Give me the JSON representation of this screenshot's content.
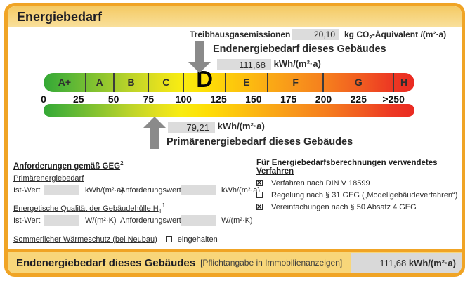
{
  "title": "Energiebedarf",
  "colors": {
    "frame": "#f0a425",
    "band": "#f8d67a",
    "valuebox": "#dcdcdc",
    "arrow": "#8a8a8a",
    "text-dark": "#1d1d24"
  },
  "emissions": {
    "label": "Treibhausgasemissionen",
    "value": "20,10",
    "unit_pre": "kg CO",
    "unit_sub": "2",
    "unit_post": "-Äquivalent /(m²·a)"
  },
  "endenergie": {
    "label": "Endenergiebedarf dieses Gebäudes",
    "value": "111,68",
    "unit": "kWh/(m²·a)"
  },
  "primaerenergie": {
    "value": "79,21",
    "unit": "kWh/(m²·a)",
    "label": "Primärenergiebedarf dieses Gebäudes"
  },
  "chart_data": {
    "type": "bar",
    "subtype": "energy-efficiency-class-scale",
    "title": "Energiebedarf",
    "unit": "kWh/(m²·a)",
    "axis_min": 0,
    "axis_max_label": ">250",
    "bar_value_span": 265,
    "tick_labels": [
      "0",
      "25",
      "50",
      "75",
      "100",
      "125",
      "150",
      "175",
      "200",
      "225",
      ">250"
    ],
    "tick_label_values": [
      0,
      25,
      50,
      75,
      100,
      125,
      150,
      175,
      200,
      225,
      250
    ],
    "class_boundaries": [
      30,
      50,
      75,
      100,
      130,
      160,
      200,
      250
    ],
    "classes": [
      {
        "label": "A+",
        "center": 15
      },
      {
        "label": "A",
        "center": 40
      },
      {
        "label": "B",
        "center": 62.5
      },
      {
        "label": "C",
        "center": 87.5
      },
      {
        "label": "D",
        "center": 115
      },
      {
        "label": "E",
        "center": 145
      },
      {
        "label": "F",
        "center": 180
      },
      {
        "label": "G",
        "center": 225
      },
      {
        "label": "H",
        "center": 257.5
      }
    ],
    "highlighted_class": "D",
    "markers": [
      {
        "name": "Endenergiebedarf dieses Gebäudes",
        "value": 111.68,
        "unit": "kWh/(m²·a)",
        "arrow": "down"
      },
      {
        "name": "Primärenergiebedarf dieses Gebäudes",
        "value": 79.21,
        "unit": "kWh/(m²·a)",
        "arrow": "up"
      }
    ],
    "gradient": [
      {
        "c": "#33a835",
        "p": 0
      },
      {
        "c": "#5ab636",
        "p": 7
      },
      {
        "c": "#8ac42f",
        "p": 15
      },
      {
        "c": "#bad32a",
        "p": 23
      },
      {
        "c": "#e3e01f",
        "p": 31
      },
      {
        "c": "#f8ec12",
        "p": 37
      },
      {
        "c": "#fede06",
        "p": 44
      },
      {
        "c": "#fdc60d",
        "p": 52
      },
      {
        "c": "#fbad14",
        "p": 60
      },
      {
        "c": "#f8951b",
        "p": 68
      },
      {
        "c": "#f57b1e",
        "p": 77
      },
      {
        "c": "#f15a21",
        "p": 86
      },
      {
        "c": "#ed3b23",
        "p": 93
      },
      {
        "c": "#ea2a22",
        "p": 100
      }
    ]
  },
  "anforderungen": {
    "heading": "Anforderungen gemäß GEG",
    "heading_sup": "2",
    "row1": {
      "subheading": "Primärenergiebedarf",
      "ist_label": "Ist-Wert",
      "ist_unit": "kWh/(m²·a)",
      "anf_label": "Anforderungswert",
      "anf_unit": "kWh/(m²·a)"
    },
    "row2": {
      "subheading_pre": "Energetische Qualität der Gebäudehülle H",
      "subheading_sub": "T",
      "subheading_sup": "1",
      "ist_label": "Ist-Wert",
      "ist_unit": "W/(m²·K)",
      "anf_label": "Anforderungswert",
      "anf_unit": "W/(m²·K)"
    },
    "sommer": {
      "label": "Sommerlicher Wärmeschutz (bei Neubau)",
      "checked": false,
      "suffix": "eingehalten"
    }
  },
  "verfahren": {
    "heading": "Für Energiebedarfsberechnungen verwendetes Verfahren",
    "items": [
      {
        "label": "Verfahren nach DIN V 18599",
        "checked": true
      },
      {
        "label": "Regelung nach § 31 GEG („Modellgebäudeverfahren“)",
        "checked": false
      },
      {
        "label": "Vereinfachungen nach § 50 Absatz 4 GEG",
        "checked": true
      }
    ]
  },
  "footer": {
    "label": "Endenergiebedarf dieses Gebäudes",
    "note": "[Pflichtangabe in Immobilienanzeigen]",
    "value": "111,68",
    "unit": "kWh/(m²·a)"
  }
}
